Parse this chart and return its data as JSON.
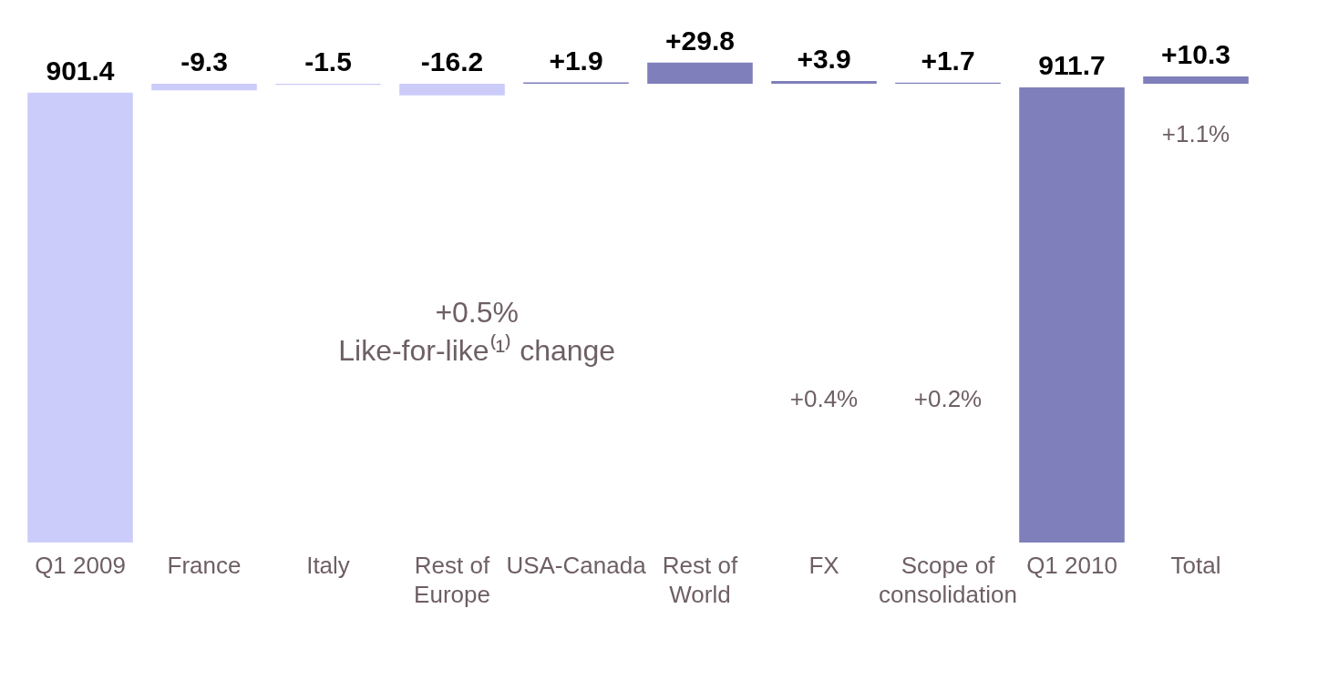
{
  "chart_data": {
    "type": "bar",
    "categories": [
      "Q1 2009",
      "France",
      "Italy",
      "Rest of Europe",
      "USA-Canada",
      "Rest of World",
      "FX",
      "Scope of consolidation",
      "Q1 2010",
      "Total"
    ],
    "series": [
      {
        "values": [
          null,
          -9.3,
          -1.5,
          -16.2,
          1.9,
          29.8,
          3.9,
          1.7,
          null,
          10.3
        ],
        "colors": [
          null,
          "#ccccfa",
          "#ccccfa",
          "#ccccfa",
          "#7f7fbb",
          "#7f7fbb",
          "#7f7fbb",
          "#7f7fbb",
          null,
          "#7f7fbb"
        ],
        "value_labels": [
          null,
          "-9.3",
          "-1.5",
          "-16.2",
          "+1.9",
          "+29.8",
          "+3.9",
          "+1.7",
          null,
          "+10.3"
        ]
      },
      {
        "axis": "y2",
        "values": [
          901.4,
          null,
          null,
          null,
          null,
          null,
          null,
          null,
          911.7,
          null
        ],
        "colors": [
          "#ccccfa",
          null,
          null,
          null,
          null,
          null,
          null,
          null,
          "#7f7fbb",
          null
        ],
        "value_labels": [
          "901.4",
          null,
          null,
          null,
          null,
          null,
          null,
          null,
          "911.7",
          null
        ]
      }
    ],
    "annotations": [
      "+0.5%\nLike-for-like⁽¹⁾ change",
      "+0.4%",
      "+0.2%",
      "+1.1%"
    ],
    "tick_labels": "x"
  }
}
